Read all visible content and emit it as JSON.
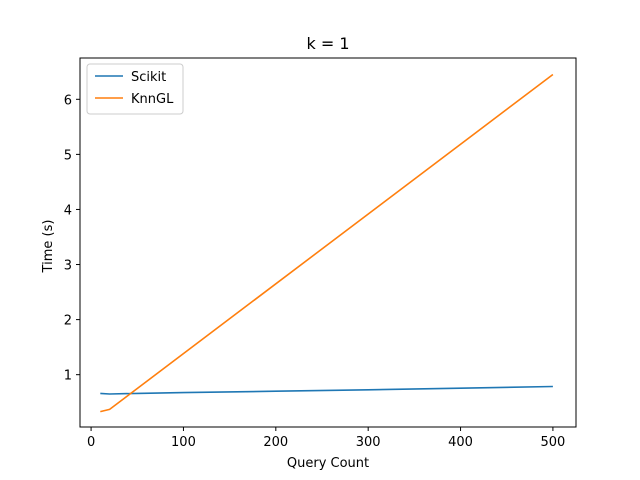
{
  "chart_data": {
    "type": "line",
    "title": "k = 1",
    "xlabel": "Query Count",
    "ylabel": "Time (s)",
    "xlim": [
      -12,
      525
    ],
    "ylim": [
      0.05,
      6.75
    ],
    "xticks": [
      0,
      100,
      200,
      300,
      400,
      500
    ],
    "yticks": [
      1,
      2,
      3,
      4,
      5,
      6
    ],
    "grid": false,
    "legend_position": "upper-left",
    "series": [
      {
        "name": "Scikit",
        "color": "#1f77b4",
        "x": [
          10,
          20,
          50,
          100,
          200,
          300,
          400,
          500
        ],
        "y": [
          0.66,
          0.65,
          0.66,
          0.675,
          0.7,
          0.725,
          0.755,
          0.785
        ]
      },
      {
        "name": "KnnGL",
        "color": "#ff7f0e",
        "x": [
          10,
          20,
          500
        ],
        "y": [
          0.33,
          0.37,
          6.45
        ]
      }
    ]
  }
}
